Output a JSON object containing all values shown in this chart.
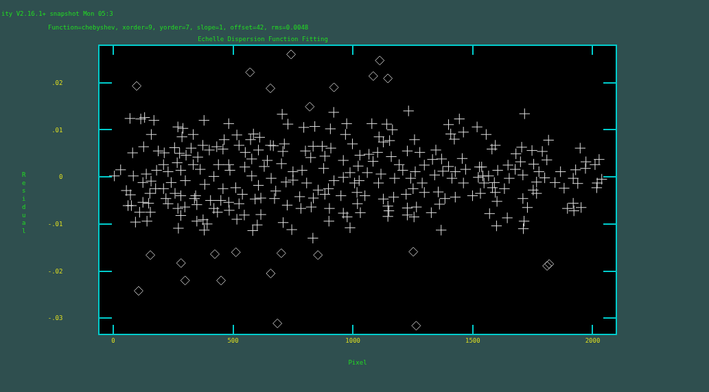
{
  "chart_data": {
    "type": "scatter",
    "title": "Echelle Dispersion Function Fitting",
    "subtitle": "Function=chebyshev, xorder=9, yorder=7, slope=1, offset=42, rms=0.0048",
    "annotations": [
      "ity V2.16.1+ snapshot Mon 05:3"
    ],
    "xlabel": "Pixel",
    "ylabel": "Residual",
    "xlim": [
      -57,
      2096
    ],
    "ylim": [
      -0.0333,
      0.0278
    ],
    "xticks": [
      0,
      500,
      1000,
      1500,
      2000
    ],
    "yticks": [
      {
        "value": -0.03,
        "label": "-.03"
      },
      {
        "value": -0.02,
        "label": "-.02"
      },
      {
        "value": -0.01,
        "label": "-.01"
      },
      0,
      {
        "value": 0.01,
        "label": ".01"
      },
      {
        "value": 0.02,
        "label": ".02"
      }
    ],
    "grid": false,
    "series": [
      {
        "marker": "cross",
        "color": "#e0e0e0",
        "x": [
          70,
          115,
          131,
          170,
          379,
          270,
          291,
          159,
          334,
          287,
          127,
          81,
          188,
          213,
          256,
          325,
          374,
          401,
          458,
          432,
          463,
          277,
          304,
          353,
          210,
          267,
          31,
          5,
          84,
          138,
          181,
          229,
          282,
          334,
          363,
          420,
          439,
          124,
          158,
          242,
          301,
          382,
          55,
          72,
          153,
          177,
          210,
          258,
          344,
          458,
          124,
          148,
          220,
          229,
          282,
          339,
          406,
          449,
          62,
          76,
          110,
          155,
          270,
          299,
          349,
          420,
          435,
          282,
          93,
          141,
          272,
          349,
          375,
          392,
          380,
          705,
          729,
          795,
          841,
          906,
          920,
          974,
          482,
          516,
          585,
          611,
          573,
          525,
          551,
          606,
          656,
          668,
          714,
          708,
          802,
          834,
          872,
          908,
          824,
          883,
          998,
          969,
          578,
          643,
          702,
          482,
          549,
          630,
          750,
          788,
          878,
          960,
          988,
          487,
          578,
          659,
          721,
          807,
          921,
          1007,
          511,
          606,
          678,
          750,
          855,
          898,
          960,
          539,
          616,
          673,
          778,
          835,
          883,
          950,
          482,
          525,
          592,
          726,
          783,
          826,
          902,
          484,
          547,
          616,
          516,
          709,
          745,
          601,
          582,
          833,
          960,
          976,
          900,
          988,
          1232,
          1079,
          1141,
          1165,
          1444,
          1399,
          1518,
          1461,
          1408,
          1423,
          1257,
          1109,
          1127,
          1153,
          1103,
          1067,
          1029,
          1227,
          1279,
          1332,
          1370,
          1456,
          1346,
          1084,
          1160,
          1193,
          1298,
          1399,
          1022,
          1528,
          1470,
          1060,
          1117,
          1208,
          1260,
          1341,
          1375,
          1427,
          1026,
          1107,
          1174,
          1241,
          1289,
          1413,
          1461,
          1523,
          1017,
          1050,
          1127,
          1170,
          1222,
          1251,
          1298,
          1356,
          1384,
          1427,
          1499,
          1532,
          1019,
          1146,
          1227,
          1265,
          1361,
          1327,
          1031,
          1150,
          1146,
          1227,
          1255,
          1368,
          1716,
          1556,
          1594,
          1580,
          1704,
          1816,
          1948,
          1747,
          1680,
          1790,
          1699,
          1754,
          1647,
          1809,
          1972,
          2027,
          2010,
          1970,
          1537,
          1604,
          1677,
          1776,
          1866,
          1929,
          1709,
          1542,
          1566,
          1652,
          1800,
          2038,
          1919,
          1547,
          1590,
          1766,
          1843,
          1881,
          1938,
          2019,
          2017,
          1632,
          1582,
          1752,
          1766,
          1594,
          1709,
          1601,
          1728,
          1919,
          1952,
          1895,
          1922,
          1570,
          1644,
          1714,
          1599,
          1711
        ],
        "values": [
          0.0124,
          0.0123,
          0.0126,
          0.012,
          0.012,
          0.0106,
          0.0103,
          0.009,
          0.009,
          0.0085,
          0.0064,
          0.0051,
          0.0055,
          0.0051,
          0.0062,
          0.0061,
          0.0067,
          0.0057,
          0.0059,
          0.0064,
          0.0079,
          0.005,
          0.0046,
          0.0042,
          0.0026,
          0.003,
          0.0015,
          0.0002,
          0.0002,
          0.0006,
          0.0014,
          0.0011,
          0.0014,
          0.0026,
          0.0016,
          0.0001,
          0.0026,
          -0.0012,
          -0.0009,
          -0.0012,
          -0.0008,
          -0.0016,
          -0.0029,
          -0.0038,
          -0.0035,
          -0.0025,
          -0.0025,
          -0.0035,
          -0.004,
          -0.0025,
          -0.0054,
          -0.0056,
          -0.0046,
          -0.0057,
          -0.004,
          -0.0046,
          -0.005,
          -0.005,
          -0.0061,
          -0.0061,
          -0.0075,
          -0.0075,
          -0.0067,
          -0.0064,
          -0.0059,
          -0.0067,
          -0.0075,
          -0.0082,
          -0.0096,
          -0.0094,
          -0.0109,
          -0.0094,
          -0.0091,
          -0.01,
          -0.0113,
          0.0133,
          0.0112,
          0.0105,
          0.0107,
          0.0102,
          0.0137,
          0.0113,
          0.0113,
          0.0089,
          0.0091,
          0.0084,
          0.0079,
          0.0067,
          0.0052,
          0.0057,
          0.0067,
          0.0066,
          0.007,
          0.0054,
          0.0055,
          0.0065,
          0.0065,
          0.0061,
          0.0041,
          0.0044,
          0.007,
          0.009,
          0.0038,
          0.0035,
          0.0028,
          0.0026,
          0.0021,
          0.0022,
          0.0011,
          0.0014,
          0.0018,
          0.0035,
          0.0009,
          0.0014,
          0.0002,
          -0.0003,
          -0.0011,
          -0.0013,
          -0.0008,
          -0.0013,
          -0.0023,
          -0.0018,
          -0.003,
          -0.0007,
          -0.0028,
          -0.0025,
          -0.0001,
          -0.0037,
          -0.0045,
          -0.0046,
          -0.0042,
          -0.0045,
          -0.0037,
          -0.004,
          -0.0054,
          -0.0057,
          -0.0047,
          -0.006,
          -0.0067,
          -0.0064,
          -0.0067,
          -0.0071,
          -0.0081,
          -0.008,
          -0.009,
          -0.0097,
          -0.0112,
          -0.0102,
          -0.0114,
          -0.013,
          -0.0077,
          -0.0085,
          -0.0094,
          -0.0108,
          0.014,
          0.0113,
          0.0112,
          0.01,
          0.0123,
          0.0111,
          0.0106,
          0.0095,
          0.0091,
          0.008,
          0.0079,
          0.0085,
          0.0074,
          0.0077,
          0.0052,
          0.0048,
          0.0046,
          0.0055,
          0.0052,
          0.0037,
          0.0038,
          0.0039,
          0.0057,
          0.0033,
          0.0043,
          0.0026,
          0.0025,
          0.0022,
          0.0023,
          0.0021,
          0.0016,
          0.0009,
          0.0006,
          0.0014,
          0.0011,
          0.0004,
          0.0012,
          0.0011,
          -0.0008,
          -0.0013,
          -0.0003,
          -0.0003,
          -0.0013,
          -0.0003,
          -0.0013,
          -0.0001,
          -0.0033,
          -0.004,
          -0.0047,
          -0.0043,
          -0.0037,
          -0.0025,
          -0.0033,
          -0.0032,
          -0.0046,
          -0.0043,
          -0.004,
          -0.0035,
          -0.0057,
          -0.0062,
          -0.0066,
          -0.0064,
          -0.0058,
          -0.0076,
          -0.0076,
          -0.0072,
          -0.0084,
          -0.0081,
          -0.0085,
          -0.0113,
          0.0134,
          0.009,
          0.0067,
          0.0059,
          0.0063,
          0.0078,
          0.0061,
          0.0056,
          0.0049,
          0.0054,
          0.0032,
          0.0027,
          0.0025,
          0.0036,
          0.0032,
          0.0037,
          0.0026,
          0.0018,
          0.0021,
          0.0014,
          0.0016,
          0.0011,
          0.0011,
          0.0015,
          0.0004,
          0.0002,
          0.0002,
          -0.0003,
          -0.0002,
          -0.0005,
          -0.0003,
          -0.0013,
          -0.0012,
          -0.0011,
          -0.0012,
          -0.0024,
          -0.0014,
          -0.0013,
          -0.0023,
          -0.0025,
          -0.0023,
          -0.0028,
          -0.0035,
          -0.0033,
          -0.0046,
          -0.0052,
          -0.0065,
          -0.0056,
          -0.0065,
          -0.0067,
          -0.0072,
          -0.0078,
          -0.0087,
          -0.0094,
          -0.0104,
          -0.011
        ]
      },
      {
        "marker": "diamond",
        "color": "#c8c8c8",
        "x": [
          98,
          155,
          424,
          283,
          300,
          450,
          106,
          742,
          571,
          656,
          921,
          820,
          512,
          701,
          854,
          657,
          685,
          1112,
          1085,
          1146,
          1252,
          1264,
          1810,
          1819
        ],
        "values": [
          0.0193,
          -0.0166,
          -0.0164,
          -0.0183,
          -0.022,
          -0.022,
          -0.0242,
          0.026,
          0.0222,
          0.0188,
          0.019,
          0.0149,
          -0.016,
          -0.0162,
          -0.0166,
          -0.0205,
          -0.0311,
          0.0247,
          0.0214,
          0.0209,
          -0.0159,
          -0.0316,
          -0.0189,
          -0.0185
        ]
      }
    ]
  }
}
